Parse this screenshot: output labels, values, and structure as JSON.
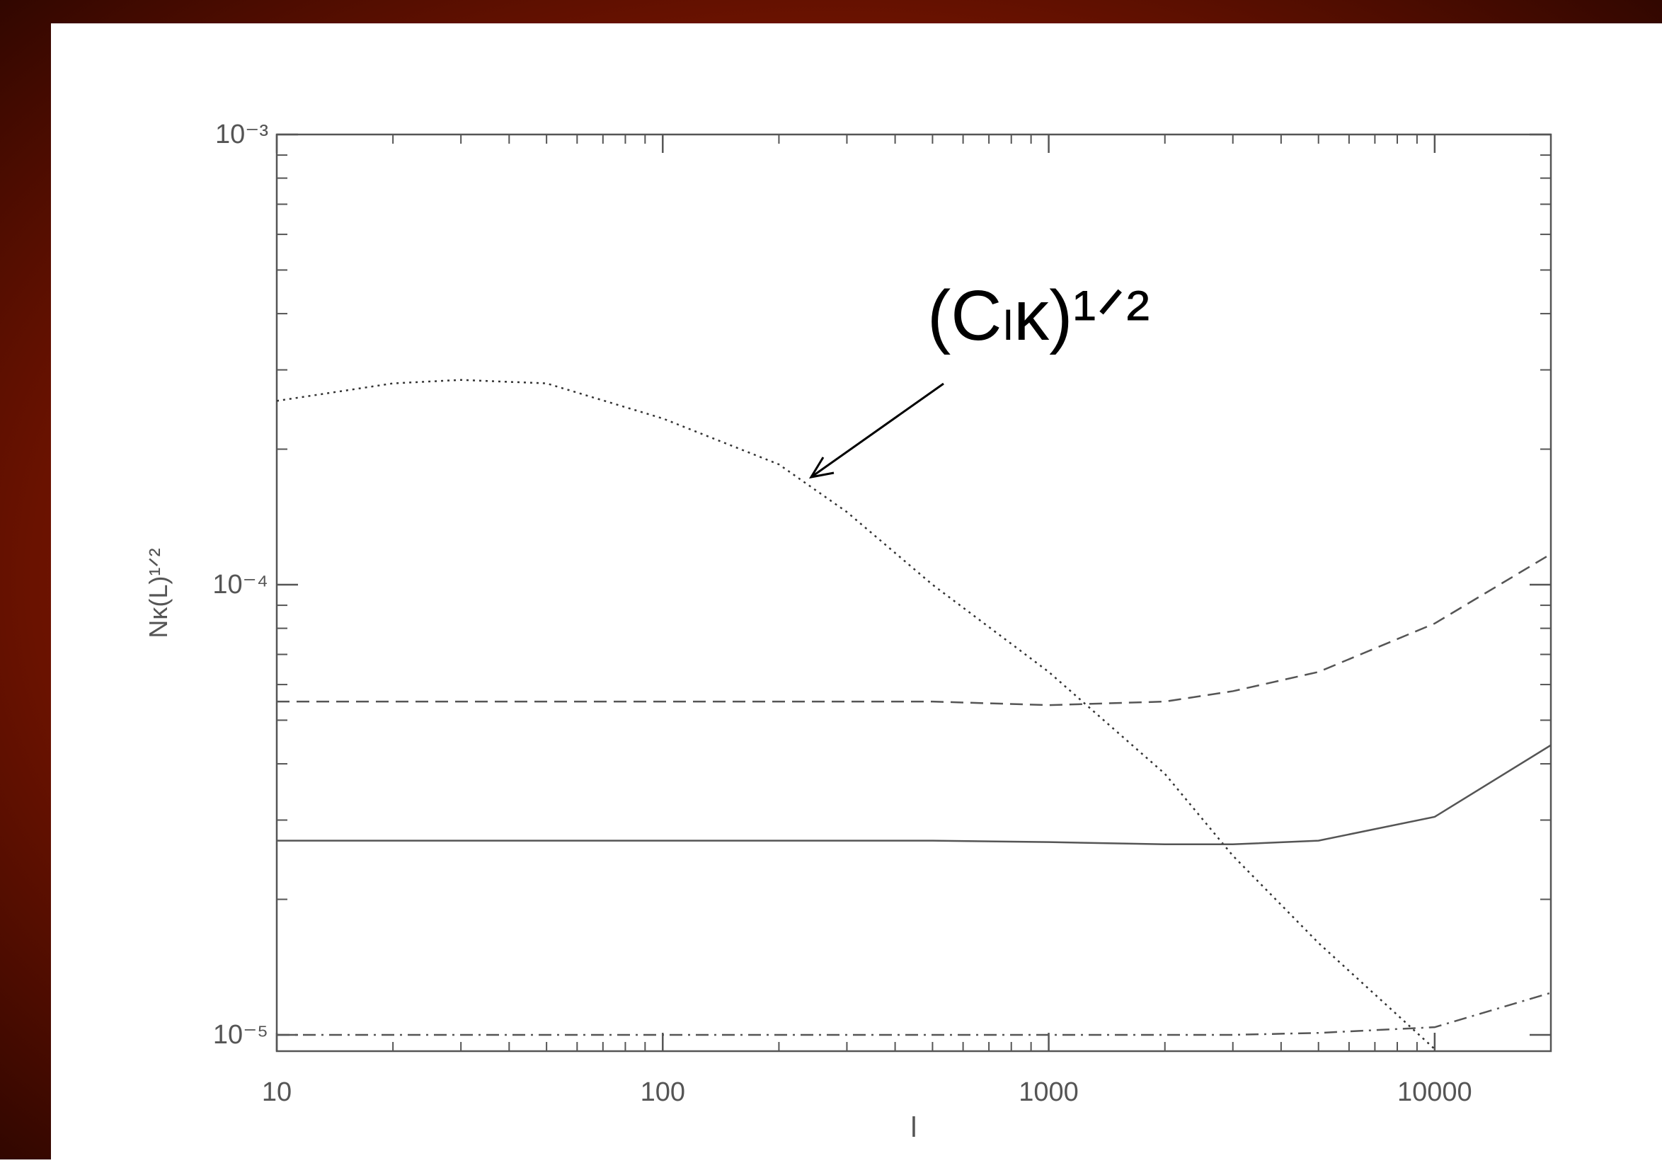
{
  "chart_data": {
    "type": "line",
    "xlabel": "l",
    "ylabel": "Nκ(L)¹ᐟ²",
    "annotation": "(Cₗκ)¹ᐟ²",
    "xscale": "log",
    "yscale": "log",
    "xlim": [
      10,
      20000
    ],
    "ylim": [
      9.2e-06,
      0.001
    ],
    "xticks": [
      10,
      100,
      1000,
      10000
    ],
    "yticks": [
      {
        "value": 0.001,
        "label": "10⁻³"
      },
      {
        "value": 0.0001,
        "label": "10⁻⁴"
      },
      {
        "value": 1e-05,
        "label": "10⁻⁵"
      }
    ],
    "xminor_ticks": [
      20,
      30,
      40,
      50,
      60,
      70,
      80,
      90,
      200,
      300,
      400,
      500,
      600,
      700,
      800,
      900,
      2000,
      3000,
      4000,
      5000,
      6000,
      7000,
      8000,
      9000
    ],
    "yminor_ticks": [
      2e-05,
      3e-05,
      4e-05,
      5e-05,
      6e-05,
      7e-05,
      8e-05,
      9e-05,
      0.0002,
      0.0003,
      0.0004,
      0.0005,
      0.0006,
      0.0007,
      0.0008,
      0.0009
    ],
    "x": [
      10,
      20,
      30,
      50,
      100,
      200,
      300,
      500,
      1000,
      2000,
      3000,
      5000,
      10000,
      20000
    ],
    "series": [
      {
        "color": "#333333",
        "dash": "dotted",
        "values": [
          0.000256,
          0.00028,
          0.000285,
          0.00028,
          0.000234,
          0.000185,
          0.000145,
          0.0001,
          6.4e-05,
          3.8e-05,
          2.5e-05,
          1.6e-05,
          9.3e-06,
          null
        ]
      },
      {
        "color": "#555555",
        "dash": "dashed",
        "values": [
          5.5e-05,
          5.5e-05,
          5.5e-05,
          5.5e-05,
          5.5e-05,
          5.5e-05,
          5.5e-05,
          5.5e-05,
          5.4e-05,
          5.5e-05,
          5.8e-05,
          6.4e-05,
          8.2e-05,
          0.000117
        ]
      },
      {
        "color": "#555555",
        "dash": "solid",
        "values": [
          2.7e-05,
          2.7e-05,
          2.7e-05,
          2.7e-05,
          2.7e-05,
          2.7e-05,
          2.7e-05,
          2.7e-05,
          2.68e-05,
          2.65e-05,
          2.65e-05,
          2.7e-05,
          3.05e-05,
          4.4e-05
        ]
      },
      {
        "color": "#555555",
        "dash": "dashdot",
        "values": [
          1e-05,
          1e-05,
          1e-05,
          1e-05,
          1e-05,
          1e-05,
          1e-05,
          1e-05,
          1e-05,
          1e-05,
          1e-05,
          1.01e-05,
          1.04e-05,
          1.24e-05
        ]
      }
    ]
  }
}
